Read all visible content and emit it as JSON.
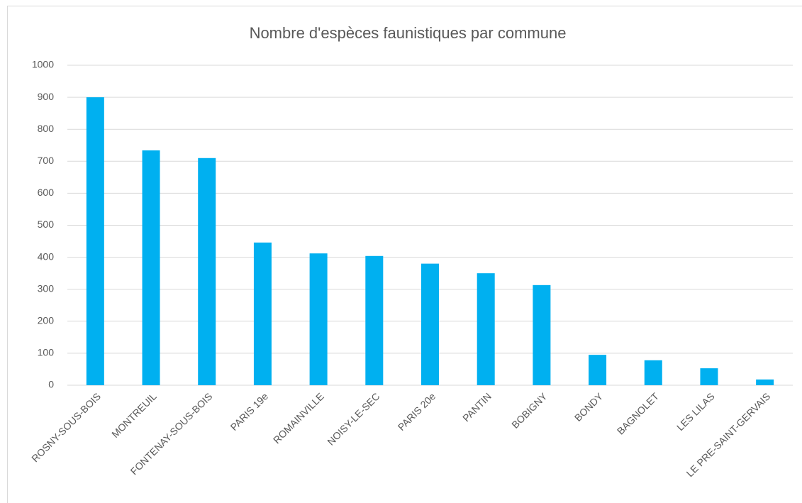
{
  "chart_data": {
    "type": "bar",
    "title": "Nombre d'espèces faunistiques par commune",
    "categories": [
      "ROSNY-SOUS-BOIS",
      "MONTREUIL",
      "FONTENAY-SOUS-BOIS",
      "PARIS 19e",
      "ROMAINVILLE",
      "NOISY-LE-SEC",
      "PARIS 20e",
      "PANTIN",
      "BOBIGNY",
      "BONDY",
      "BAGNOLET",
      "LES LILAS",
      "LE PRE-SAINT-GERVAIS"
    ],
    "values": [
      900,
      734,
      710,
      446,
      412,
      404,
      380,
      350,
      313,
      95,
      78,
      53,
      18
    ],
    "color": "#00b0f0",
    "ylim": [
      0,
      1000
    ],
    "yticks": [
      0,
      100,
      200,
      300,
      400,
      500,
      600,
      700,
      800,
      900,
      1000
    ],
    "grid": true
  }
}
